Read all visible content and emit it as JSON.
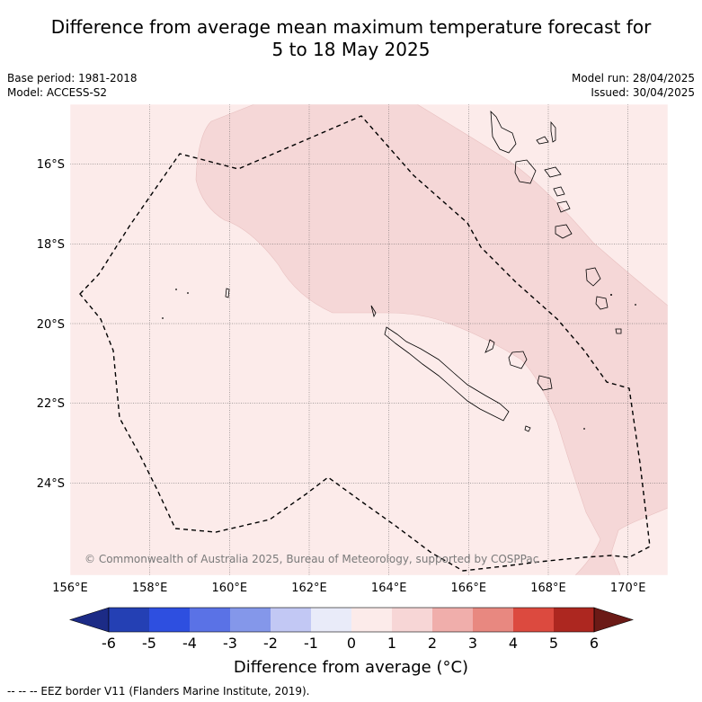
{
  "title_line1": "Difference from average mean maximum temperature forecast for",
  "title_line2": "5 to 18 May 2025",
  "base_period": "Base period: 1981-2018",
  "model": "Model: ACCESS-S2",
  "model_run": "Model run: 28/04/2025",
  "issued": "Issued: 30/04/2025",
  "credit": "© Commonwealth of Australia 2025, Bureau of Meteorology, supported by COSPPac",
  "lon_ticks": [
    "156°E",
    "158°E",
    "160°E",
    "162°E",
    "164°E",
    "166°E",
    "168°E",
    "170°E"
  ],
  "lat_ticks": [
    "16°S",
    "18°S",
    "20°S",
    "22°S",
    "24°S"
  ],
  "colorbar": {
    "title": "Difference from average (°C)",
    "labels": [
      "-6",
      "-5",
      "-4",
      "-3",
      "-2",
      "-1",
      "0",
      "1",
      "2",
      "3",
      "4",
      "5",
      "6"
    ],
    "colors": [
      "#1c2b86",
      "#2440b4",
      "#2e4fe0",
      "#5a72e6",
      "#8497ea",
      "#c2c8f4",
      "#e9ebf9",
      "#fcebea",
      "#f7d6d6",
      "#f0aeab",
      "#e88880",
      "#dc4a3f",
      "#ad2720",
      "#6b1a16"
    ]
  },
  "footer": "--  --  -- EEZ border V11 (Flanders Marine Institute, 2019).",
  "colors": {
    "background_anomaly": "#fcebea",
    "anomaly_1_to_2": "#f5d7d7"
  }
}
